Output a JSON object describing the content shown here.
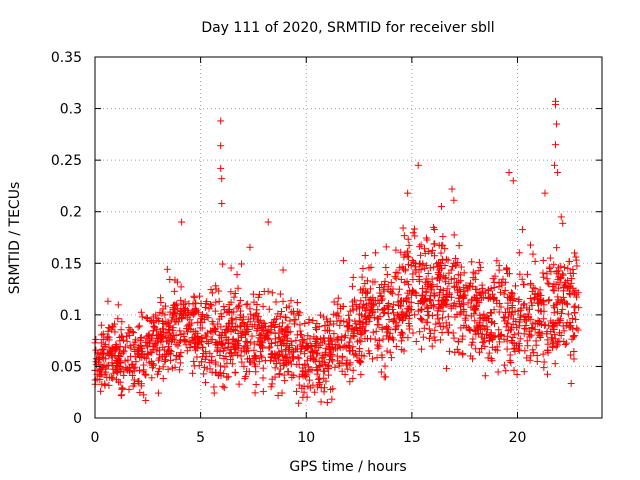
{
  "chart_data": {
    "type": "scatter",
    "title": "Day 111 of 2020, SRMTID for receiver sbll",
    "xlabel": "GPS time / hours",
    "ylabel": "SRMTID / TECUs",
    "xlim": [
      0,
      24
    ],
    "ylim": [
      0,
      0.35
    ],
    "xticks": [
      0,
      5,
      10,
      15,
      20
    ],
    "xtick_labels": [
      "0",
      "5",
      "10",
      "15",
      "20"
    ],
    "yticks": [
      0,
      0.05,
      0.1,
      0.15,
      0.2,
      0.25,
      0.3,
      0.35
    ],
    "ytick_labels": [
      "0",
      "0.05",
      "0.1",
      "0.15",
      "0.2",
      "0.25",
      "0.3",
      "0.35"
    ],
    "grid": true,
    "marker": "+",
    "color": "#ff0000",
    "series": [
      {
        "name": "SRMTID",
        "profile_hours": [
          0,
          1,
          2,
          3,
          4,
          5,
          6,
          7,
          8,
          9,
          10,
          11,
          12,
          13,
          14,
          15,
          16,
          17,
          18,
          19,
          20,
          21,
          22,
          22.9
        ],
        "profile_median": [
          0.055,
          0.06,
          0.055,
          0.075,
          0.09,
          0.08,
          0.07,
          0.085,
          0.07,
          0.075,
          0.06,
          0.065,
          0.08,
          0.1,
          0.1,
          0.12,
          0.13,
          0.12,
          0.1,
          0.095,
          0.1,
          0.1,
          0.11,
          0.09
        ],
        "profile_spread": [
          0.02,
          0.025,
          0.025,
          0.03,
          0.035,
          0.03,
          0.035,
          0.035,
          0.03,
          0.035,
          0.025,
          0.03,
          0.03,
          0.035,
          0.035,
          0.04,
          0.04,
          0.04,
          0.035,
          0.04,
          0.035,
          0.04,
          0.045,
          0.04
        ],
        "sample_count": 2200,
        "peaks": [
          {
            "x": 4.1,
            "y": 0.19
          },
          {
            "x": 5.95,
            "y": 0.288
          },
          {
            "x": 5.95,
            "y": 0.264
          },
          {
            "x": 5.95,
            "y": 0.242
          },
          {
            "x": 6.0,
            "y": 0.232
          },
          {
            "x": 6.0,
            "y": 0.208
          },
          {
            "x": 8.2,
            "y": 0.19
          },
          {
            "x": 15.3,
            "y": 0.245
          },
          {
            "x": 14.8,
            "y": 0.218
          },
          {
            "x": 16.4,
            "y": 0.205
          },
          {
            "x": 16.9,
            "y": 0.222
          },
          {
            "x": 19.6,
            "y": 0.238
          },
          {
            "x": 19.8,
            "y": 0.23
          },
          {
            "x": 21.3,
            "y": 0.218
          },
          {
            "x": 21.8,
            "y": 0.307
          },
          {
            "x": 21.8,
            "y": 0.304
          },
          {
            "x": 21.85,
            "y": 0.285
          },
          {
            "x": 21.8,
            "y": 0.265
          },
          {
            "x": 21.75,
            "y": 0.245
          },
          {
            "x": 21.9,
            "y": 0.238
          },
          {
            "x": 22.7,
            "y": 0.16
          },
          {
            "x": 2.4,
            "y": 0.017
          },
          {
            "x": 10.4,
            "y": 0.025
          },
          {
            "x": 11.0,
            "y": 0.015
          }
        ]
      }
    ]
  }
}
